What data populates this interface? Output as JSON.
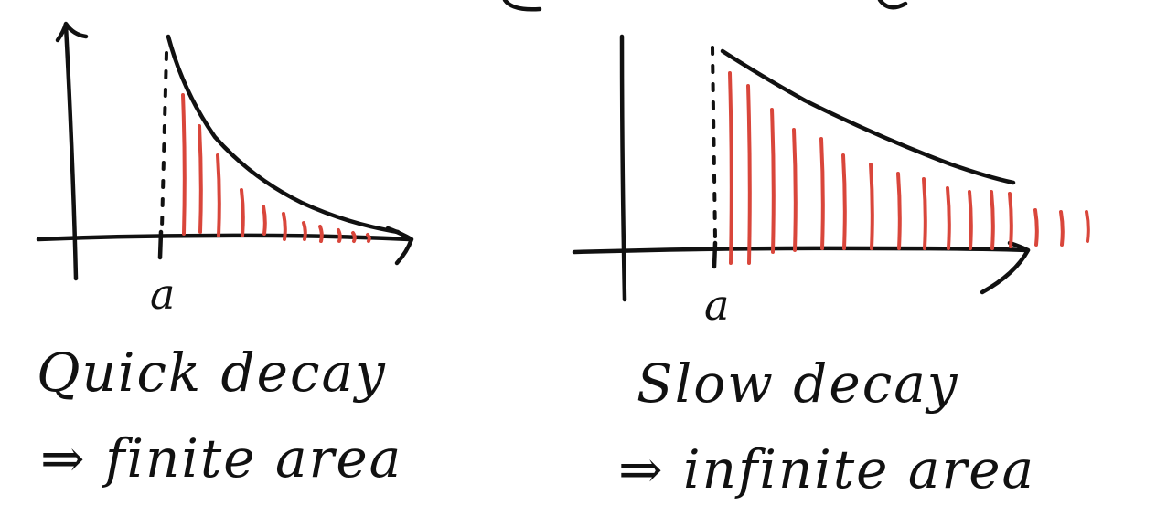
{
  "colors": {
    "ink": "#111111",
    "shade": "#d9463b",
    "background": "#ffffff"
  },
  "left_panel": {
    "point_label": "a",
    "caption_line1": "Quick decay",
    "caption_line2": "⇒ finite area"
  },
  "right_panel": {
    "point_label": "a",
    "caption_line1": "Slow decay",
    "caption_line2": "⇒ infinite area"
  }
}
